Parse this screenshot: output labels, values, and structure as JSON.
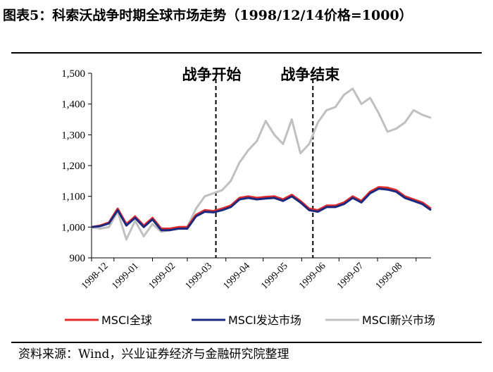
{
  "figure": {
    "title": "图表5：科索沃战争时期全球市场走势（1998/12/14价格=1000）",
    "source": "资料来源：Wind，兴业证券经济与金融研究院整理"
  },
  "chart_data": {
    "type": "line",
    "title": "",
    "xlabel": "",
    "ylabel": "",
    "ylim": [
      900,
      1500
    ],
    "yticks": [
      900,
      1000,
      1100,
      1200,
      1300,
      1400,
      1500
    ],
    "ytick_labels": [
      "900",
      "1,000",
      "1,100",
      "1,200",
      "1,300",
      "1,400",
      "1,500"
    ],
    "xtick_labels": [
      "1998-12",
      "1999-01",
      "1999-02",
      "1999-03",
      "1999-04",
      "1999-05",
      "1999-06",
      "1999-07",
      "1999-08"
    ],
    "legend_position": "bottom",
    "annotations": [
      {
        "text": "战争开始",
        "x": "1999-03-24"
      },
      {
        "text": "战争结束",
        "x": "1999-06-10"
      }
    ],
    "x": [
      "1998-12-14",
      "1998-12-21",
      "1998-12-28",
      "1999-01-04",
      "1999-01-11",
      "1999-01-18",
      "1999-01-25",
      "1999-02-01",
      "1999-02-08",
      "1999-02-15",
      "1999-02-22",
      "1999-03-01",
      "1999-03-08",
      "1999-03-15",
      "1999-03-22",
      "1999-03-29",
      "1999-04-05",
      "1999-04-12",
      "1999-04-19",
      "1999-04-26",
      "1999-05-03",
      "1999-05-10",
      "1999-05-17",
      "1999-05-24",
      "1999-05-31",
      "1999-06-07",
      "1999-06-14",
      "1999-06-21",
      "1999-06-28",
      "1999-07-05",
      "1999-07-12",
      "1999-07-19",
      "1999-07-26",
      "1999-08-02",
      "1999-08-09",
      "1999-08-16",
      "1999-08-23",
      "1999-08-30",
      "1999-09-06",
      "1999-09-13"
    ],
    "series": [
      {
        "name": "MSCI全球",
        "color": "#e32b2b",
        "values": [
          1000,
          1005,
          1015,
          1060,
          1010,
          1035,
          1005,
          1030,
          995,
          995,
          1000,
          1000,
          1040,
          1055,
          1052,
          1060,
          1070,
          1095,
          1100,
          1095,
          1098,
          1100,
          1090,
          1105,
          1085,
          1060,
          1055,
          1070,
          1070,
          1080,
          1100,
          1085,
          1115,
          1130,
          1128,
          1120,
          1100,
          1090,
          1080,
          1060
        ]
      },
      {
        "name": "MSCI发达市场",
        "color": "#1a2a80",
        "values": [
          1000,
          1003,
          1012,
          1055,
          1005,
          1030,
          1000,
          1025,
          990,
          990,
          995,
          995,
          1035,
          1050,
          1048,
          1055,
          1065,
          1090,
          1095,
          1090,
          1093,
          1095,
          1085,
          1100,
          1080,
          1055,
          1050,
          1065,
          1065,
          1075,
          1095,
          1080,
          1110,
          1125,
          1122,
          1115,
          1095,
          1085,
          1075,
          1055
        ]
      },
      {
        "name": "MSCI新兴市场",
        "color": "#c0c0c0",
        "values": [
          1000,
          995,
          1000,
          1050,
          960,
          1020,
          970,
          1010,
          985,
          990,
          1000,
          1000,
          1060,
          1100,
          1110,
          1120,
          1150,
          1210,
          1250,
          1280,
          1345,
          1300,
          1270,
          1350,
          1240,
          1270,
          1340,
          1380,
          1390,
          1430,
          1450,
          1400,
          1420,
          1370,
          1310,
          1320,
          1340,
          1380,
          1365,
          1355
        ]
      }
    ]
  }
}
